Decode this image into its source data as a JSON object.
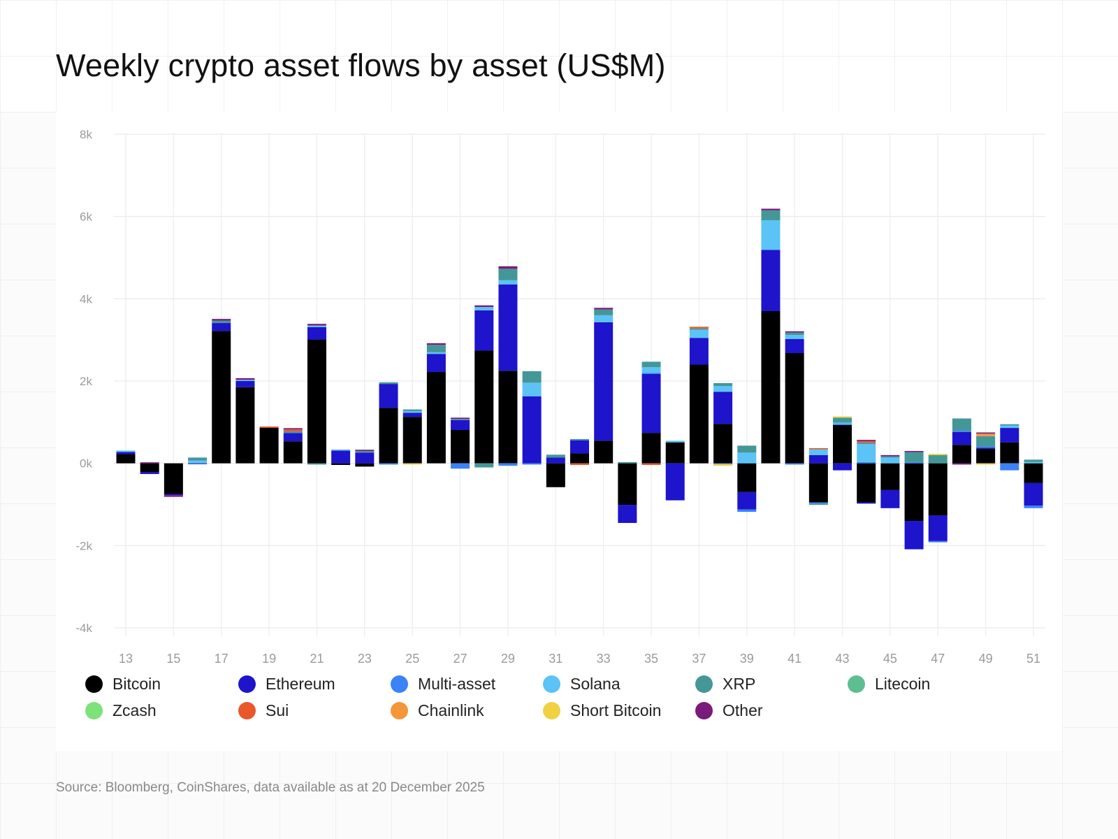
{
  "title": "Weekly crypto asset flows by asset (US$M)",
  "source": "Source: Bloomberg, CoinShares, data available as at 20 December 2025",
  "chart_data": {
    "type": "bar",
    "stacked": true,
    "title": "Weekly crypto asset flows by asset (US$M)",
    "xlabel": "",
    "ylabel": "",
    "ylim": [
      -4000,
      8000
    ],
    "yticks": [
      -4000,
      -2000,
      0,
      2000,
      4000,
      6000,
      8000
    ],
    "ytick_labels": [
      "-4k",
      "-2k",
      "0k",
      "2k",
      "4k",
      "6k",
      "8k"
    ],
    "grid": true,
    "legend_position": "bottom",
    "categories": [
      13,
      14,
      15,
      16,
      17,
      18,
      19,
      20,
      21,
      22,
      23,
      24,
      25,
      26,
      27,
      28,
      29,
      30,
      31,
      32,
      33,
      34,
      35,
      36,
      37,
      38,
      39,
      40,
      41,
      42,
      43,
      44,
      45,
      46,
      47,
      48,
      49,
      50,
      51
    ],
    "xtick_labels": [
      "13",
      "15",
      "17",
      "19",
      "21",
      "23",
      "25",
      "27",
      "29",
      "31",
      "33",
      "35",
      "37",
      "39",
      "41",
      "43",
      "45",
      "47",
      "49",
      "51"
    ],
    "series": [
      {
        "name": "Bitcoin",
        "color": "#000000",
        "values": [
          225,
          -210,
          -745,
          0,
          3220,
          1850,
          865,
          535,
          3010,
          -40,
          -80,
          1350,
          1130,
          2220,
          810,
          2740,
          2250,
          0,
          -580,
          240,
          550,
          -1010,
          740,
          510,
          2400,
          960,
          -700,
          3700,
          2680,
          -950,
          930,
          -950,
          -650,
          -1400,
          -1270,
          450,
          350,
          510,
          -480
        ]
      },
      {
        "name": "Ethereum",
        "color": "#1d14cc",
        "values": [
          50,
          -50,
          -30,
          -20,
          190,
          150,
          0,
          200,
          300,
          300,
          260,
          580,
          100,
          440,
          240,
          980,
          2100,
          1630,
          140,
          320,
          2880,
          -440,
          1430,
          -900,
          650,
          780,
          -420,
          1490,
          340,
          200,
          -170,
          -30,
          -440,
          -690,
          -620,
          310,
          30,
          350,
          -550
        ]
      },
      {
        "name": "Multi-asset",
        "color": "#3b82f6",
        "values": [
          0,
          0,
          0,
          0,
          0,
          0,
          0,
          0,
          0,
          30,
          0,
          -30,
          0,
          0,
          -130,
          0,
          -60,
          -30,
          0,
          0,
          0,
          0,
          30,
          0,
          0,
          -20,
          -60,
          0,
          -30,
          -30,
          30,
          30,
          0,
          30,
          -30,
          30,
          30,
          -170,
          -60
        ]
      },
      {
        "name": "Solana",
        "color": "#5bc3f5",
        "values": [
          35,
          0,
          0,
          70,
          0,
          30,
          0,
          0,
          40,
          0,
          0,
          0,
          40,
          40,
          0,
          80,
          100,
          330,
          0,
          0,
          170,
          0,
          140,
          40,
          200,
          140,
          260,
          720,
          100,
          140,
          30,
          440,
          140,
          0,
          0,
          0,
          0,
          60,
          30
        ]
      },
      {
        "name": "XRP",
        "color": "#449797",
        "values": [
          0,
          0,
          0,
          70,
          60,
          0,
          0,
          40,
          -30,
          0,
          40,
          40,
          40,
          180,
          30,
          -100,
          280,
          280,
          70,
          30,
          140,
          30,
          130,
          0,
          30,
          70,
          170,
          240,
          60,
          -30,
          120,
          30,
          30,
          240,
          200,
          300,
          250,
          30,
          60
        ]
      },
      {
        "name": "Litecoin",
        "color": "#5cbf90",
        "values": [
          0,
          0,
          0,
          0,
          0,
          0,
          0,
          0,
          0,
          0,
          0,
          0,
          0,
          0,
          0,
          0,
          0,
          0,
          0,
          0,
          0,
          0,
          0,
          0,
          0,
          0,
          0,
          0,
          0,
          0,
          0,
          0,
          0,
          0,
          0,
          0,
          0,
          0,
          0
        ]
      },
      {
        "name": "Zcash",
        "color": "#7ee27a",
        "values": [
          0,
          0,
          0,
          0,
          0,
          0,
          0,
          0,
          0,
          0,
          0,
          0,
          0,
          0,
          0,
          0,
          0,
          0,
          0,
          0,
          0,
          0,
          0,
          0,
          0,
          0,
          0,
          0,
          0,
          0,
          0,
          0,
          0,
          0,
          0,
          0,
          0,
          0,
          0
        ]
      },
      {
        "name": "Sui",
        "color": "#e9572b",
        "values": [
          0,
          0,
          0,
          0,
          0,
          0,
          30,
          50,
          0,
          0,
          0,
          0,
          0,
          0,
          0,
          0,
          0,
          0,
          0,
          -40,
          0,
          0,
          -40,
          0,
          40,
          0,
          0,
          0,
          0,
          30,
          0,
          40,
          0,
          0,
          0,
          0,
          0,
          0,
          0
        ]
      },
      {
        "name": "Chainlink",
        "color": "#f5963a",
        "values": [
          0,
          0,
          0,
          0,
          0,
          0,
          0,
          0,
          0,
          0,
          0,
          0,
          0,
          0,
          0,
          0,
          0,
          0,
          0,
          0,
          0,
          0,
          0,
          0,
          0,
          0,
          0,
          0,
          0,
          0,
          0,
          0,
          0,
          0,
          0,
          0,
          60,
          0,
          0
        ]
      },
      {
        "name": "Short Bitcoin",
        "color": "#f1d142",
        "values": [
          0,
          0,
          0,
          0,
          0,
          0,
          0,
          0,
          0,
          0,
          0,
          0,
          -30,
          0,
          0,
          0,
          0,
          0,
          0,
          0,
          0,
          0,
          0,
          0,
          0,
          -40,
          0,
          0,
          0,
          0,
          30,
          0,
          0,
          0,
          30,
          0,
          -30,
          0,
          0
        ]
      },
      {
        "name": "Other",
        "color": "#7a1a7a",
        "values": [
          0,
          25,
          -40,
          0,
          40,
          40,
          0,
          30,
          40,
          0,
          30,
          0,
          0,
          40,
          30,
          40,
          60,
          0,
          0,
          0,
          40,
          0,
          0,
          0,
          0,
          0,
          0,
          40,
          30,
          0,
          0,
          30,
          30,
          30,
          0,
          -30,
          30,
          0,
          0
        ]
      }
    ]
  }
}
